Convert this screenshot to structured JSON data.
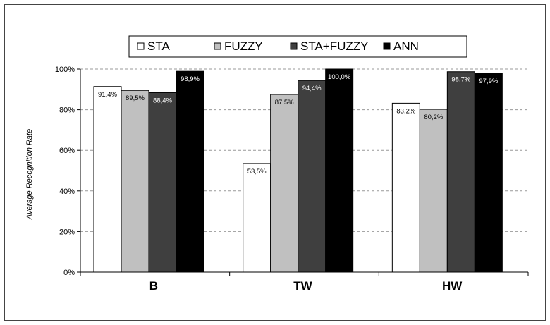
{
  "chart_data": {
    "type": "bar",
    "title": "",
    "xlabel": "",
    "ylabel": "Average Recognition Rate",
    "ylim": [
      0,
      100
    ],
    "yticks": [
      "0%",
      "20%",
      "40%",
      "60%",
      "80%",
      "100%"
    ],
    "categories": [
      "B",
      "TW",
      "HW"
    ],
    "series": [
      {
        "name": "STA",
        "color": "#ffffff",
        "values": [
          91.4,
          53.5,
          83.2
        ],
        "labels": [
          "91,4%",
          "53,5%",
          "83,2%"
        ]
      },
      {
        "name": "FUZZY",
        "color": "#c0c0c0",
        "values": [
          89.5,
          87.5,
          80.2
        ],
        "labels": [
          "89,5%",
          "87,5%",
          "80,2%"
        ]
      },
      {
        "name": "STA+FUZZY",
        "color": "#3f3f3f",
        "values": [
          88.4,
          94.4,
          98.7
        ],
        "labels": [
          "88,4%",
          "94,4%",
          "98,7%"
        ]
      },
      {
        "name": "ANN",
        "color": "#000000",
        "values": [
          98.9,
          100.0,
          97.9
        ],
        "labels": [
          "98,9%",
          "100,0%",
          "97,9%"
        ]
      }
    ],
    "legend_position": "top",
    "grid": true
  }
}
